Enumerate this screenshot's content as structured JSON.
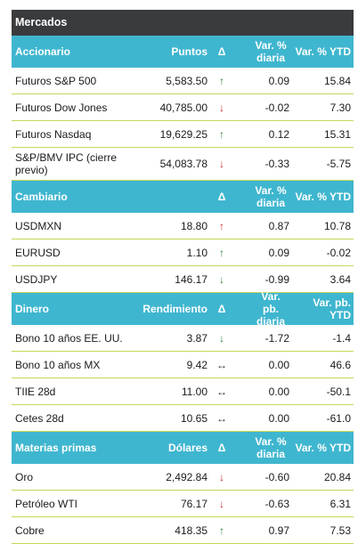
{
  "title": "Mercados",
  "arrows": {
    "up": "↑",
    "down": "↓",
    "flat": "↔"
  },
  "sections": [
    {
      "header": {
        "name": "Accionario",
        "value": "Puntos",
        "delta": "Δ",
        "daily": "Var. % diaria",
        "ytd": "Var. % YTD"
      },
      "rows": [
        {
          "name": "Futuros S&P 500",
          "value": "5,583.50",
          "dir": "up",
          "daily": "0.09",
          "ytd": "15.84"
        },
        {
          "name": "Futuros Dow Jones",
          "value": "40,785.00",
          "dir": "down",
          "daily": "-0.02",
          "ytd": "7.30"
        },
        {
          "name": "Futuros Nasdaq",
          "value": "19,629.25",
          "dir": "up",
          "daily": "0.12",
          "ytd": "15.31"
        },
        {
          "name": "S&P/BMV IPC (cierre previo)",
          "value": "54,083.78",
          "dir": "down",
          "daily": "-0.33",
          "ytd": "-5.75"
        }
      ]
    },
    {
      "header": {
        "name": "Cambiario",
        "value": "",
        "delta": "Δ",
        "daily": "Var. % diaria",
        "ytd": "Var. % YTD"
      },
      "rows": [
        {
          "name": "USDMXN",
          "value": "18.80",
          "dir": "up_red",
          "daily": "0.87",
          "ytd": "10.78"
        },
        {
          "name": "EURUSD",
          "value": "1.10",
          "dir": "up",
          "daily": "0.09",
          "ytd": "-0.02"
        },
        {
          "name": "USDJPY",
          "value": "146.17",
          "dir": "down_green",
          "daily": "-0.99",
          "ytd": "3.64"
        }
      ]
    },
    {
      "header": {
        "name": "Dinero",
        "value": "Rendimiento",
        "delta": "Δ",
        "daily": "Var. pb. diaria",
        "ytd": "Var. pb. YTD"
      },
      "rows": [
        {
          "name": "Bono 10 años EE. UU.",
          "value": "3.87",
          "dir": "down_green",
          "daily": "-1.72",
          "ytd": "-1.4"
        },
        {
          "name": "Bono 10 años MX",
          "value": "9.42",
          "dir": "flat",
          "daily": "0.00",
          "ytd": "46.6"
        },
        {
          "name": "TIIE 28d",
          "value": "11.00",
          "dir": "flat",
          "daily": "0.00",
          "ytd": "-50.1"
        },
        {
          "name": "Cetes 28d",
          "value": "10.65",
          "dir": "flat",
          "daily": "0.00",
          "ytd": "-61.0"
        }
      ]
    },
    {
      "header": {
        "name": "Materias primas",
        "value": "Dólares",
        "delta": "Δ",
        "daily": "Var. % diaria",
        "ytd": "Var. % YTD"
      },
      "rows": [
        {
          "name": "Oro",
          "value": "2,492.84",
          "dir": "down",
          "daily": "-0.60",
          "ytd": "20.84"
        },
        {
          "name": "Petróleo WTI",
          "value": "76.17",
          "dir": "down",
          "daily": "-0.63",
          "ytd": "6.31"
        },
        {
          "name": "Cobre",
          "value": "418.35",
          "dir": "up",
          "daily": "0.97",
          "ytd": "7.53"
        }
      ]
    }
  ],
  "colors": {
    "title_bg": "#3a3b3d",
    "header_bg": "#3fb6cf",
    "row_border": "#c9d65a",
    "up": "#2e7d32",
    "down": "#c62828"
  }
}
